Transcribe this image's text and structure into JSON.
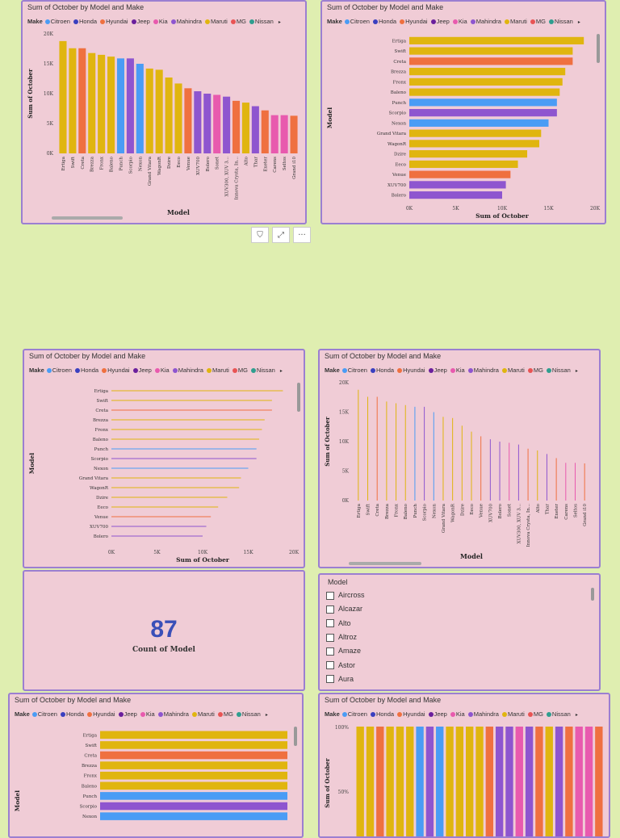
{
  "chart_title": "Sum of October by Model and Make",
  "legend": {
    "label": "Make",
    "more": "▸",
    "items": [
      {
        "name": "Citroen",
        "color": "#4a9cf5"
      },
      {
        "name": "Honda",
        "color": "#3a3fbf"
      },
      {
        "name": "Hyundai",
        "color": "#ef7040"
      },
      {
        "name": "Jeep",
        "color": "#6a1f9c"
      },
      {
        "name": "Kia",
        "color": "#e85aae"
      },
      {
        "name": "Mahindra",
        "color": "#8e55cf"
      },
      {
        "name": "Maruti",
        "color": "#e0b50f"
      },
      {
        "name": "MG",
        "color": "#e85454"
      },
      {
        "name": "Nissan",
        "color": "#2f9e8f"
      }
    ]
  },
  "card": {
    "value": "87",
    "label": "Count of Model"
  },
  "slicer": {
    "title": "Model",
    "items": [
      "Aircross",
      "Alcazar",
      "Alto",
      "Altroz",
      "Amaze",
      "Astor",
      "Aura"
    ]
  },
  "toolbar": {
    "filter": "⛉",
    "focus": "⤢",
    "more": "···"
  },
  "chart_data": [
    {
      "type": "bar",
      "orientation": "vertical",
      "title": "Sum of October by Model and Make",
      "xlabel": "Model",
      "ylabel": "Sum of October",
      "ylim": [
        0,
        20000
      ],
      "yticks": [
        "0K",
        "5K",
        "10K",
        "15K",
        "20K"
      ],
      "categories": [
        "Ertiga",
        "Swift",
        "Creta",
        "Brezza",
        "Fronx",
        "Baleno",
        "Punch",
        "Scorpio",
        "Nexon",
        "Grand Vitara",
        "WagonR",
        "Dzire",
        "Eeco",
        "Venue",
        "XUV700",
        "Bolero",
        "Sonet",
        "XUV300, XUV 3...",
        "Innova Crysta, In...",
        "Alto",
        "Thar",
        "Exeter",
        "Carens",
        "Seltos",
        "Grand i10"
      ],
      "values": [
        18800,
        17600,
        17600,
        16800,
        16500,
        16200,
        15900,
        15900,
        15000,
        14200,
        14000,
        12700,
        11700,
        10900,
        10400,
        10000,
        9800,
        9500,
        8800,
        8500,
        7900,
        7200,
        6400,
        6400,
        6300
      ],
      "makes": [
        "Maruti",
        "Maruti",
        "Hyundai",
        "Maruti",
        "Maruti",
        "Maruti",
        "Citroen",
        "Mahindra",
        "Citroen",
        "Maruti",
        "Maruti",
        "Maruti",
        "Maruti",
        "Hyundai",
        "Mahindra",
        "Mahindra",
        "Kia",
        "Mahindra",
        "Hyundai",
        "Maruti",
        "Mahindra",
        "Hyundai",
        "Kia",
        "Kia",
        "Hyundai"
      ]
    },
    {
      "type": "bar",
      "orientation": "horizontal",
      "title": "Sum of October by Model and Make",
      "xlabel": "Sum of October",
      "ylabel": "Model",
      "xlim": [
        0,
        20000
      ],
      "xticks": [
        "0K",
        "5K",
        "10K",
        "15K",
        "20K"
      ],
      "categories": [
        "Ertiga",
        "Swift",
        "Creta",
        "Brezza",
        "Fronx",
        "Baleno",
        "Punch",
        "Scorpio",
        "Nexon",
        "Grand Vitara",
        "WagonR",
        "Dzire",
        "Eeco",
        "Venue",
        "XUV700",
        "Bolero"
      ],
      "values": [
        18800,
        17600,
        17600,
        16800,
        16500,
        16200,
        15900,
        15900,
        15000,
        14200,
        14000,
        12700,
        11700,
        10900,
        10400,
        10000
      ],
      "makes": [
        "Maruti",
        "Maruti",
        "Hyundai",
        "Maruti",
        "Maruti",
        "Maruti",
        "Citroen",
        "Mahindra",
        "Citroen",
        "Maruti",
        "Maruti",
        "Maruti",
        "Maruti",
        "Hyundai",
        "Mahindra",
        "Mahindra"
      ]
    },
    {
      "type": "line",
      "orientation": "horizontal-lollipop",
      "title": "Sum of October by Model and Make",
      "xlabel": "Sum of October",
      "ylabel": "Model",
      "xlim": [
        0,
        20000
      ],
      "xticks": [
        "0K",
        "5K",
        "10K",
        "15K",
        "20K"
      ],
      "categories": [
        "Ertiga",
        "Swift",
        "Creta",
        "Brezza",
        "Fronx",
        "Baleno",
        "Punch",
        "Scorpio",
        "Nexon",
        "Grand Vitara",
        "WagonR",
        "Dzire",
        "Eeco",
        "Venue",
        "XUV700",
        "Bolero"
      ],
      "values": [
        18800,
        17600,
        17600,
        16800,
        16500,
        16200,
        15900,
        15900,
        15000,
        14200,
        14000,
        12700,
        11700,
        10900,
        10400,
        10000
      ],
      "makes": [
        "Maruti",
        "Maruti",
        "Hyundai",
        "Maruti",
        "Maruti",
        "Maruti",
        "Citroen",
        "Mahindra",
        "Citroen",
        "Maruti",
        "Maruti",
        "Maruti",
        "Maruti",
        "Hyundai",
        "Mahindra",
        "Mahindra"
      ]
    },
    {
      "type": "line",
      "orientation": "vertical-lollipop",
      "title": "Sum of October by Model and Make",
      "xlabel": "Model",
      "ylabel": "Sum of October",
      "ylim": [
        0,
        20000
      ],
      "yticks": [
        "0K",
        "5K",
        "10K",
        "15K",
        "20K"
      ],
      "categories": [
        "Ertiga",
        "Swift",
        "Creta",
        "Brezza",
        "Fronx",
        "Baleno",
        "Punch",
        "Scorpio",
        "Nexon",
        "Grand Vitara",
        "WagonR",
        "Dzire",
        "Eeco",
        "Venue",
        "XUV700",
        "Bolero",
        "Sonet",
        "XUV300, XUV 3...",
        "Innova Crysta, In...",
        "Alto",
        "Thar",
        "Exeter",
        "Carens",
        "Seltos",
        "Grand i10"
      ],
      "values": [
        18800,
        17600,
        17600,
        16800,
        16500,
        16200,
        15900,
        15900,
        15000,
        14200,
        14000,
        12700,
        11700,
        10900,
        10400,
        10000,
        9800,
        9500,
        8800,
        8500,
        7900,
        7200,
        6400,
        6400,
        6300
      ],
      "makes": [
        "Maruti",
        "Maruti",
        "Hyundai",
        "Maruti",
        "Maruti",
        "Maruti",
        "Citroen",
        "Mahindra",
        "Citroen",
        "Maruti",
        "Maruti",
        "Maruti",
        "Maruti",
        "Hyundai",
        "Mahindra",
        "Mahindra",
        "Kia",
        "Mahindra",
        "Hyundai",
        "Maruti",
        "Mahindra",
        "Hyundai",
        "Kia",
        "Kia",
        "Hyundai"
      ]
    },
    {
      "type": "bar",
      "orientation": "horizontal-100",
      "title": "Sum of October by Model and Make",
      "ylabel": "Model",
      "categories": [
        "Ertiga",
        "Swift",
        "Creta",
        "Brezza",
        "Fronx",
        "Baleno",
        "Punch",
        "Scorpio",
        "Nexon"
      ],
      "values": [
        100,
        100,
        100,
        100,
        100,
        100,
        100,
        100,
        100
      ],
      "makes": [
        "Maruti",
        "Maruti",
        "Hyundai",
        "Maruti",
        "Maruti",
        "Maruti",
        "Citroen",
        "Mahindra",
        "Citroen"
      ]
    },
    {
      "type": "bar",
      "orientation": "vertical-100",
      "title": "Sum of October by Model and Make",
      "ylabel": "Sum of October",
      "yticks": [
        "100%",
        "50%"
      ],
      "values": [
        100,
        100,
        100,
        100,
        100,
        100,
        100,
        100,
        100,
        100,
        100,
        100,
        100,
        100,
        100,
        100,
        100,
        100,
        100,
        100,
        100,
        100,
        100,
        100,
        100
      ],
      "makes": [
        "Maruti",
        "Maruti",
        "Hyundai",
        "Maruti",
        "Maruti",
        "Maruti",
        "Citroen",
        "Mahindra",
        "Citroen",
        "Maruti",
        "Maruti",
        "Maruti",
        "Maruti",
        "Hyundai",
        "Mahindra",
        "Mahindra",
        "Kia",
        "Mahindra",
        "Hyundai",
        "Maruti",
        "Mahindra",
        "Hyundai",
        "Kia",
        "Kia",
        "Hyundai"
      ]
    }
  ]
}
